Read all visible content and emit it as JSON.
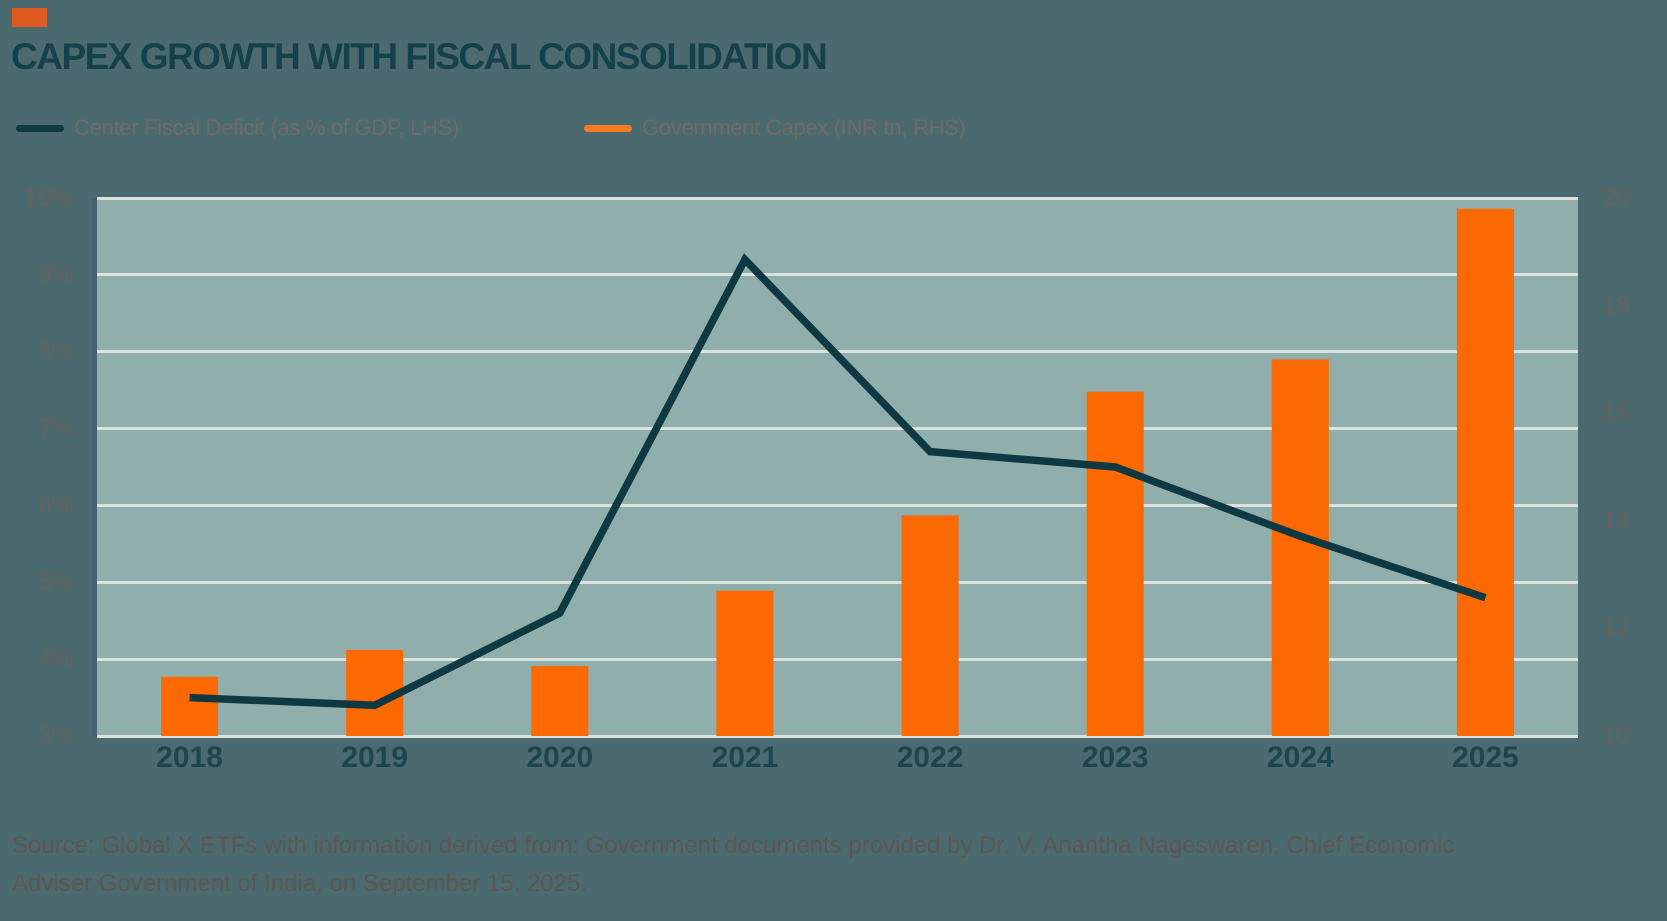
{
  "header": {
    "accent_color": "#DE5A20",
    "title": "CAPEX GROWTH WITH FISCAL CONSOLIDATION"
  },
  "legend": [
    {
      "label": "Center Fiscal Deficit (as % of GDP, LHS)",
      "color": "#123A42"
    },
    {
      "label": "Government Capex (INR tn, RHS)",
      "color": "#FA7B1F"
    }
  ],
  "chart_data": {
    "type": "bar",
    "subtype": "combo-bar-line",
    "title": "CAPEX GROWTH WITH FISCAL CONSOLIDATION",
    "categories": [
      "2018",
      "2019",
      "2020",
      "2021",
      "2022",
      "2023",
      "2024",
      "2025"
    ],
    "series": [
      {
        "name": "Center Fiscal Deficit (as % of GDP, LHS)",
        "type": "line",
        "axis": "left",
        "unit": "% of GDP",
        "color": "#0E3943",
        "values": [
          3.5,
          3.4,
          4.6,
          9.2,
          6.7,
          6.5,
          5.6,
          4.8
        ]
      },
      {
        "name": "Government Capex (INR tn, RHS)",
        "type": "bar",
        "axis": "right",
        "unit": "INR tn",
        "color": "#FB6900",
        "values": [
          11.1,
          11.6,
          11.3,
          12.7,
          14.1,
          16.4,
          17.0,
          19.8
        ]
      }
    ],
    "left_axis": {
      "ticks": [
        "10%",
        "9%",
        "8%",
        "7%",
        "6%",
        "5%",
        "4%",
        "3%"
      ],
      "min": 3,
      "max": 10
    },
    "right_axis": {
      "ticks": [
        "20",
        "18",
        "16",
        "14",
        "12",
        "10"
      ],
      "min": 10,
      "max": 20
    },
    "grid": true,
    "legend_position": "top",
    "plot_bg": "#8FAEAC",
    "gridline_color": "#DBE1DD"
  },
  "footer": {
    "line1": "Source: Global X ETFs with information derived from: Government documents provided by Dr. V. Anantha Nageswaren, Chief Economic",
    "line2": "Adviser Government of India, on September 15, 2025."
  }
}
